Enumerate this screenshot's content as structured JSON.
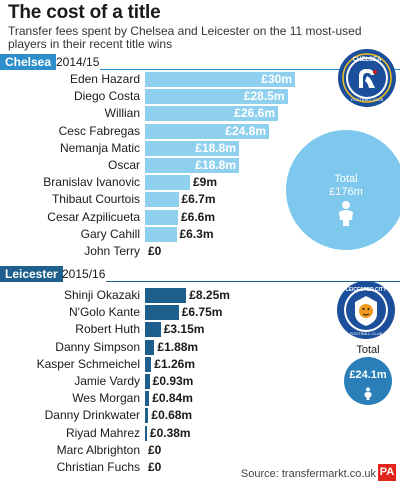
{
  "title": "The cost of a title",
  "subtitle": "Transfer fees spent by Chelsea and Leicester on the 11 most-used players in their recent title wins",
  "colors": {
    "chelsea_bar": "#8fd0ef",
    "chelsea_tag": "#2c8fcb",
    "chelsea_circle": "#7dc8ec",
    "leicester_bar": "#1e5f8e",
    "leicester_tag": "#1e5f8e",
    "leicester_circle": "#2a7fb8"
  },
  "chelsea": {
    "team": "Chelsea",
    "season": "2014/15",
    "total_label": "Total",
    "total_value": "£176m",
    "logo_text": "CHELSEA",
    "logo_ring_text": "FOOTBALL CLUB"
  },
  "leicester": {
    "team": "Leicester",
    "season": "2015/16",
    "total_label": "Total",
    "total_value": "£24.1m",
    "logo_text": "LEICESTER CITY",
    "logo_ring_text": "FOOTBALL CLUB"
  },
  "source": "Source: transfermarkt.co.uk",
  "pa_logo": "PA",
  "chart_data": [
    {
      "type": "bar",
      "title": "Chelsea 2014/15",
      "unit": "£m",
      "categories": [
        "Eden Hazard",
        "Diego Costa",
        "Willian",
        "Cesc Fabregas",
        "Nemanja Matic",
        "Oscar",
        "Branislav Ivanovic",
        "Thibaut Courtois",
        "Cesar Azpilicueta",
        "Gary Cahill",
        "John Terry"
      ],
      "values": [
        30,
        28.5,
        26.6,
        24.8,
        18.8,
        18.8,
        9,
        6.7,
        6.6,
        6.3,
        0
      ],
      "labels": [
        "£30m",
        "£28.5m",
        "£26.6m",
        "£24.8m",
        "£18.8m",
        "£18.8m",
        "£9m",
        "£6.7m",
        "£6.6m",
        "£6.3m",
        "£0"
      ],
      "total": 176
    },
    {
      "type": "bar",
      "title": "Leicester 2015/16",
      "unit": "£m",
      "categories": [
        "Shinji Okazaki",
        "N'Golo Kante",
        "Robert Huth",
        "Danny Simpson",
        "Kasper Schmeichel",
        "Jamie Vardy",
        "Wes Morgan",
        "Danny Drinkwater",
        "Riyad Mahrez",
        "Marc Albrighton",
        "Christian Fuchs"
      ],
      "values": [
        8.25,
        6.75,
        3.15,
        1.88,
        1.26,
        0.93,
        0.84,
        0.68,
        0.38,
        0,
        0
      ],
      "labels": [
        "£8.25m",
        "£6.75m",
        "£3.15m",
        "£1.88m",
        "£1.26m",
        "£0.93m",
        "£0.84m",
        "£0.68m",
        "£0.38m",
        "£0",
        "£0"
      ],
      "total": 24.1
    }
  ]
}
